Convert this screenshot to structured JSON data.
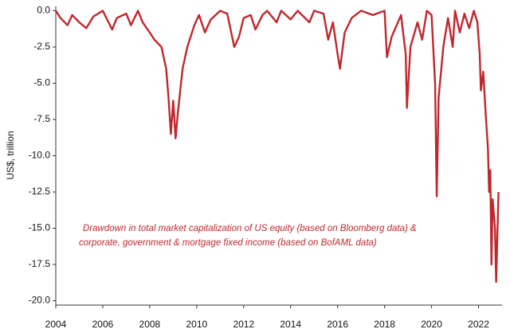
{
  "chart_data": {
    "type": "line",
    "y_label": "US$, trillion",
    "annotation": [
      "Drawdown in total market capitalization of US equity (based on Bloomberg data) &",
      "corporate, government & mortgage fixed income (based on BofAML data)"
    ],
    "xlim": [
      2004,
      2023
    ],
    "xticks": [
      2004,
      2006,
      2008,
      2010,
      2012,
      2014,
      2016,
      2018,
      2020,
      2022
    ],
    "ylim": [
      -20.3,
      0.3
    ],
    "yticks": [
      {
        "value": 0,
        "label": "0.0"
      },
      {
        "value": -2.5,
        "label": "-2.5"
      },
      {
        "value": -5,
        "label": "-5.0"
      },
      {
        "value": -7.5,
        "label": "-7.5"
      },
      {
        "value": -10,
        "label": "-10.0"
      },
      {
        "value": -12.5,
        "label": "-12.5"
      },
      {
        "value": -15,
        "label": "-15.0"
      },
      {
        "value": -17.5,
        "label": "-17.5"
      },
      {
        "value": -20,
        "label": "-20.0"
      }
    ],
    "x": [
      2004.0,
      2004.2,
      2004.5,
      2004.7,
      2005.0,
      2005.3,
      2005.6,
      2006.0,
      2006.4,
      2006.6,
      2007.0,
      2007.2,
      2007.5,
      2007.7,
      2008.0,
      2008.2,
      2008.5,
      2008.7,
      2008.8,
      2008.9,
      2009.0,
      2009.1,
      2009.2,
      2009.4,
      2009.6,
      2009.9,
      2010.1,
      2010.35,
      2010.6,
      2011.0,
      2011.3,
      2011.6,
      2011.8,
      2012.0,
      2012.3,
      2012.5,
      2012.8,
      2013.0,
      2013.4,
      2013.6,
      2014.0,
      2014.3,
      2014.8,
      2015.0,
      2015.4,
      2015.6,
      2015.8,
      2016.0,
      2016.1,
      2016.3,
      2016.6,
      2017.0,
      2017.5,
      2018.0,
      2018.1,
      2018.3,
      2018.7,
      2018.9,
      2018.95,
      2019.1,
      2019.4,
      2019.6,
      2019.8,
      2020.0,
      2020.15,
      2020.22,
      2020.3,
      2020.5,
      2020.7,
      2020.9,
      2021.0,
      2021.2,
      2021.4,
      2021.6,
      2021.8,
      2021.95,
      2022.05,
      2022.1,
      2022.2,
      2022.3,
      2022.4,
      2022.45,
      2022.5,
      2022.55,
      2022.6,
      2022.7,
      2022.75,
      2022.85
    ],
    "series": [
      {
        "color": "#c0272d",
        "values": [
          0,
          -0.5,
          -1.0,
          -0.3,
          -0.8,
          -1.2,
          -0.4,
          0,
          -1.3,
          -0.5,
          -0.2,
          -1.0,
          0,
          -0.8,
          -1.5,
          -2.0,
          -2.5,
          -4.0,
          -6.0,
          -8.5,
          -6.2,
          -8.8,
          -7.0,
          -4.0,
          -2.5,
          -1.0,
          -0.3,
          -1.5,
          -0.6,
          0,
          -0.2,
          -2.5,
          -1.8,
          -0.5,
          -0.3,
          -1.3,
          -0.3,
          0,
          -0.8,
          0,
          -0.6,
          0,
          -0.8,
          0,
          -0.2,
          -2.0,
          -0.8,
          -3.0,
          -4.0,
          -1.5,
          -0.5,
          0,
          -0.3,
          0,
          -3.2,
          -1.8,
          -0.3,
          -3.0,
          -6.7,
          -2.5,
          -0.8,
          -2.0,
          0,
          -0.3,
          -5.0,
          -12.8,
          -6.0,
          -2.5,
          -0.5,
          -2.5,
          0,
          -1.5,
          -0.2,
          -1.2,
          0,
          -0.8,
          -3.0,
          -5.5,
          -4.2,
          -7.0,
          -9.5,
          -12.5,
          -11.0,
          -17.5,
          -13.0,
          -15.0,
          -18.7,
          -12.5
        ]
      }
    ]
  }
}
